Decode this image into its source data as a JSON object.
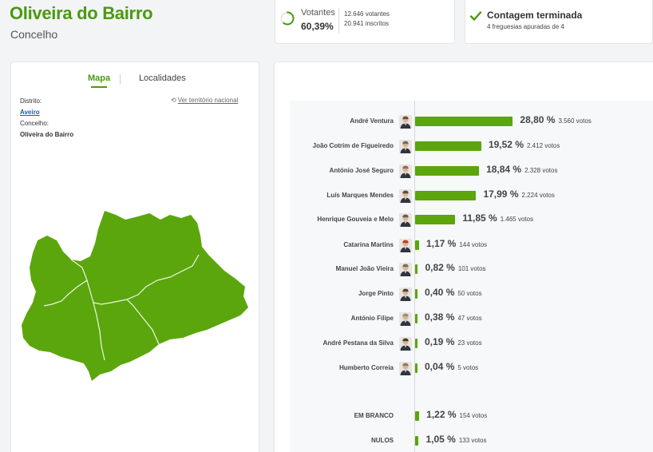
{
  "header": {
    "title": "Oliveira do Bairro",
    "subtitle": "Concelho"
  },
  "votantes": {
    "label": "Votantes",
    "percent": "60,39%",
    "votes_line": "12.646 votantes",
    "inscritos_line": "20.941 inscritos",
    "progress": 0.6039
  },
  "contagem": {
    "title": "Contagem terminada",
    "subtitle": "4 freguesias apuradas de 4"
  },
  "tabs": {
    "mapa": "Mapa",
    "localidades": "Localidades"
  },
  "territory": {
    "distrito_label": "Distrito:",
    "distrito_value": "Aveiro",
    "concelho_label": "Concelho:",
    "concelho_value": "Oliveira do Bairro",
    "ver_nacional": "Ver território nacional"
  },
  "colors": {
    "accent": "#4a9a0e",
    "bar": "#5aa60c",
    "map": "#5aa60c"
  },
  "chart_data": {
    "type": "bar",
    "orientation": "horizontal",
    "categories": [
      "André Ventura",
      "João Cotrim de Figueiredo",
      "António José Seguro",
      "Luís Marques Mendes",
      "Henrique Gouveia e Melo",
      "Catarina Martins",
      "Manuel João Vieira",
      "Jorge Pinto",
      "António Filipe",
      "André Pestana da Silva",
      "Humberto Correia",
      "EM BRANCO",
      "NULOS"
    ],
    "values": [
      28.8,
      19.52,
      18.84,
      17.99,
      11.85,
      1.17,
      0.82,
      0.4,
      0.38,
      0.19,
      0.04,
      1.22,
      1.05
    ],
    "value_labels": [
      "28,80 %",
      "19,52 %",
      "18,84 %",
      "17,99 %",
      "11,85 %",
      "1,17 %",
      "0,82 %",
      "0,40 %",
      "0,38 %",
      "0,19 %",
      "0,04 %",
      "1,22 %",
      "1,05 %"
    ],
    "votes": [
      "3.560 votos",
      "2.412 votos",
      "2.328 votos",
      "2.224 votos",
      "1.465 votos",
      "144 votos",
      "101 votos",
      "50 votos",
      "47 votos",
      "23 votos",
      "5 votos",
      "154 votos",
      "133 votos"
    ],
    "has_avatar": [
      true,
      true,
      true,
      true,
      true,
      true,
      true,
      true,
      true,
      true,
      true,
      false,
      false
    ]
  }
}
